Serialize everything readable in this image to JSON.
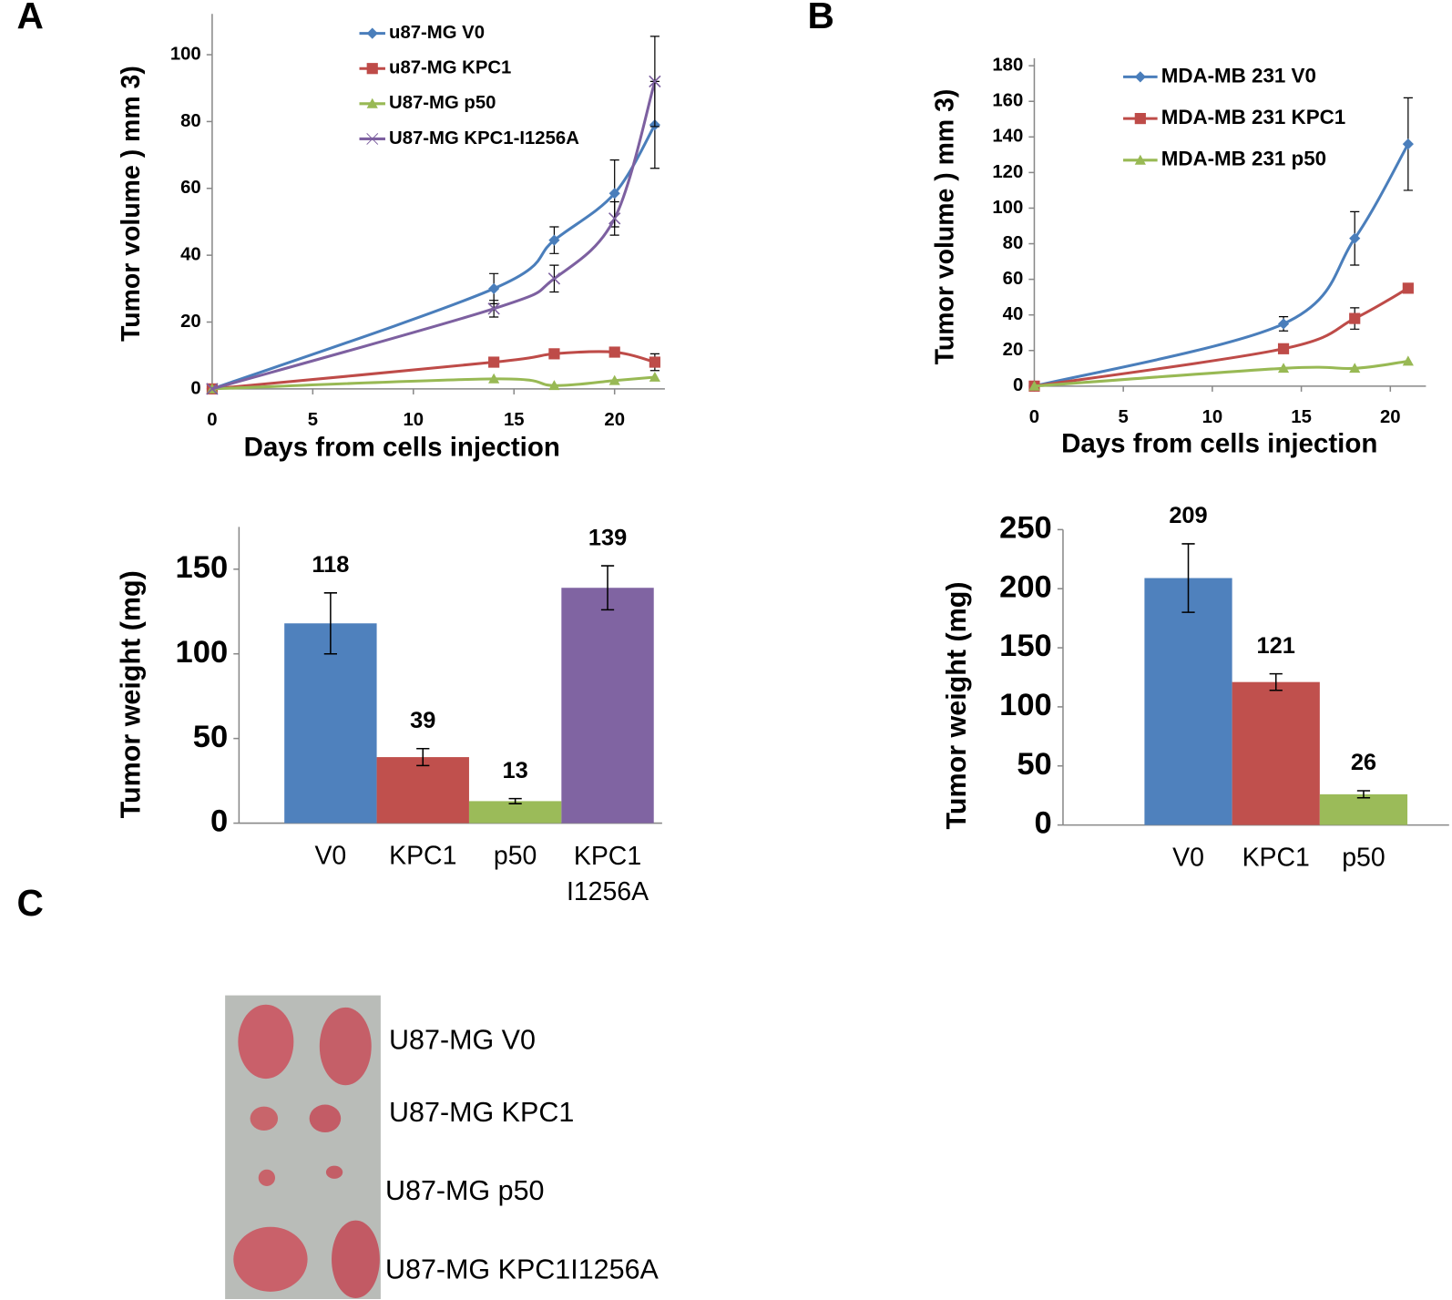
{
  "panels": [
    "A",
    "B",
    "C"
  ],
  "photo_labels": [
    "U87-MG V0",
    "U87-MG KPC1",
    "U87-MG p50",
    "U87-MG KPC1I1256A"
  ],
  "chart_data": [
    {
      "type": "line",
      "x_label": "Days from cells injection",
      "y_label": "Tumor volume ) mm 3)",
      "x": [
        0,
        14,
        17,
        20,
        22
      ],
      "xlim": [
        0,
        22.5
      ],
      "xticks": [
        0,
        5,
        10,
        15,
        20
      ],
      "ylim": [
        0,
        110
      ],
      "yticks": [
        0,
        20,
        40,
        60,
        80,
        100
      ],
      "legend": "top",
      "series": [
        {
          "name": "u87-MG V0",
          "color": "#4a7ebb",
          "marker": "diamond",
          "values": [
            0,
            30,
            44.5,
            58.5,
            79
          ],
          "error": [
            null,
            4.5,
            4,
            10,
            13
          ]
        },
        {
          "name": "u87-MG KPC1",
          "color": "#be4b48",
          "marker": "square",
          "values": [
            0,
            8,
            10.5,
            11,
            8
          ],
          "error": [
            null,
            null,
            null,
            null,
            2.5
          ]
        },
        {
          "name": "U87-MG p50",
          "color": "#98b954",
          "marker": "triangle",
          "values": [
            0,
            3,
            1,
            2.5,
            3.5
          ]
        },
        {
          "name": "U87-MG KPC1-I1256A",
          "color": "#7d60a0",
          "marker": "x",
          "values": [
            0,
            24,
            33,
            51,
            92
          ],
          "error": [
            null,
            2.5,
            4,
            5,
            13.5
          ]
        }
      ]
    },
    {
      "type": "line",
      "x_label": "Days from cells injection",
      "y_label": "Tumor volume ) mm 3)",
      "x": [
        0,
        14,
        18,
        21
      ],
      "xlim": [
        0,
        22
      ],
      "xticks": [
        0,
        5,
        10,
        15,
        20
      ],
      "ylim": [
        0,
        180
      ],
      "yticks": [
        0,
        20,
        40,
        60,
        80,
        100,
        120,
        140,
        160,
        180
      ],
      "legend": "top left",
      "series": [
        {
          "name": "MDA-MB 231 V0",
          "color": "#4a7ebb",
          "marker": "diamond",
          "values": [
            0,
            35,
            83,
            136
          ],
          "error": [
            null,
            4,
            15,
            26
          ]
        },
        {
          "name": "MDA-MB 231 KPC1",
          "color": "#be4b48",
          "marker": "square",
          "values": [
            0,
            21,
            38,
            55
          ],
          "error": [
            null,
            null,
            6,
            null
          ]
        },
        {
          "name": "MDA-MB 231 p50",
          "color": "#98b954",
          "marker": "triangle",
          "values": [
            0,
            10,
            10,
            14
          ]
        }
      ]
    },
    {
      "type": "bar",
      "y_label": "Tumor weight (mg)",
      "categories": [
        "V0",
        "KPC1",
        "p50",
        "KPC1 I1256A"
      ],
      "values": [
        118,
        39,
        13,
        139
      ],
      "error": [
        18,
        5,
        1.5,
        13
      ],
      "colors": [
        "#4f81bd",
        "#c0504d",
        "#9bbb59",
        "#8064a2"
      ],
      "ylim": [
        0,
        175
      ],
      "yticks": [
        0,
        50,
        100,
        150
      ]
    },
    {
      "type": "bar",
      "y_label": "Tumor weight (mg)",
      "categories": [
        "V0",
        "KPC1",
        "p50"
      ],
      "values": [
        209,
        121,
        26
      ],
      "error": [
        29,
        7,
        3
      ],
      "colors": [
        "#4f81bd",
        "#c0504d",
        "#9bbb59"
      ],
      "ylim": [
        0,
        250
      ],
      "yticks": [
        0,
        50,
        100,
        150,
        200,
        250
      ]
    }
  ]
}
